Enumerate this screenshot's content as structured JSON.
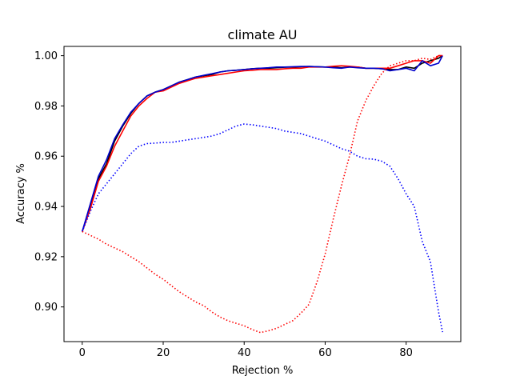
{
  "chart_data": {
    "type": "line",
    "title": "climate AU",
    "xlabel": "Rejection %",
    "ylabel": "Accuracy %",
    "xlim": [
      -4.5,
      93.5
    ],
    "ylim": [
      0.8862,
      1.0037
    ],
    "xticks": [
      0,
      20,
      40,
      60,
      80
    ],
    "yticks": [
      0.9,
      0.92,
      0.94,
      0.96,
      0.98,
      1.0
    ],
    "ytick_labels": [
      "0.90",
      "0.92",
      "0.94",
      "0.96",
      "0.98",
      "1.00"
    ],
    "grid": false,
    "legend": "none",
    "series": [
      {
        "color": "#000000",
        "style": "solid",
        "x": [
          0,
          2,
          4,
          6,
          8,
          10,
          12,
          14,
          16,
          18,
          20,
          22,
          24,
          26,
          28,
          30,
          32,
          34,
          36,
          38,
          40,
          42,
          44,
          46,
          48,
          50,
          52,
          54,
          56,
          58,
          60,
          62,
          64,
          66,
          68,
          70,
          72,
          74,
          76,
          78,
          80,
          82,
          84,
          86,
          88,
          89
        ],
        "y": [
          0.93,
          0.94,
          0.951,
          0.957,
          0.966,
          0.972,
          0.977,
          0.981,
          0.984,
          0.9855,
          0.9865,
          0.988,
          0.9895,
          0.9905,
          0.9915,
          0.992,
          0.9925,
          0.9935,
          0.994,
          0.9942,
          0.9945,
          0.9948,
          0.995,
          0.995,
          0.9952,
          0.9954,
          0.9955,
          0.9956,
          0.9957,
          0.9956,
          0.9955,
          0.9955,
          0.9952,
          0.9955,
          0.9955,
          0.995,
          0.995,
          0.9948,
          0.9945,
          0.9945,
          0.9955,
          0.995,
          0.997,
          0.998,
          0.999,
          1.0
        ]
      },
      {
        "color": "#ff0000",
        "style": "solid",
        "x": [
          0,
          2,
          4,
          6,
          8,
          10,
          12,
          14,
          16,
          18,
          20,
          22,
          24,
          26,
          28,
          30,
          32,
          34,
          36,
          38,
          40,
          42,
          44,
          46,
          48,
          50,
          52,
          54,
          56,
          58,
          60,
          62,
          64,
          66,
          68,
          70,
          72,
          74,
          76,
          78,
          80,
          82,
          84,
          86,
          88,
          89
        ],
        "y": [
          0.93,
          0.939,
          0.95,
          0.956,
          0.964,
          0.97,
          0.976,
          0.98,
          0.983,
          0.9855,
          0.986,
          0.9875,
          0.989,
          0.99,
          0.991,
          0.9915,
          0.992,
          0.9925,
          0.993,
          0.9935,
          0.994,
          0.9942,
          0.9945,
          0.9945,
          0.9945,
          0.9948,
          0.995,
          0.995,
          0.9955,
          0.9955,
          0.9955,
          0.9958,
          0.996,
          0.9958,
          0.9955,
          0.995,
          0.995,
          0.995,
          0.995,
          0.996,
          0.997,
          0.998,
          0.998,
          0.997,
          1.0,
          1.0
        ]
      },
      {
        "color": "#0000cc",
        "style": "solid",
        "x": [
          0,
          2,
          4,
          6,
          8,
          10,
          12,
          14,
          16,
          18,
          20,
          22,
          24,
          26,
          28,
          30,
          32,
          34,
          36,
          38,
          40,
          42,
          44,
          46,
          48,
          50,
          52,
          54,
          56,
          58,
          60,
          62,
          64,
          66,
          68,
          70,
          72,
          74,
          76,
          78,
          80,
          82,
          84,
          86,
          88,
          89
        ],
        "y": [
          0.93,
          0.941,
          0.952,
          0.9585,
          0.967,
          0.9725,
          0.9775,
          0.981,
          0.984,
          0.9855,
          0.9865,
          0.988,
          0.9895,
          0.9905,
          0.9915,
          0.9922,
          0.9928,
          0.9935,
          0.994,
          0.9942,
          0.9945,
          0.9948,
          0.995,
          0.9952,
          0.9955,
          0.9955,
          0.9956,
          0.9957,
          0.9957,
          0.9956,
          0.9955,
          0.9952,
          0.995,
          0.9955,
          0.9952,
          0.995,
          0.995,
          0.9948,
          0.994,
          0.9945,
          0.995,
          0.994,
          0.998,
          0.996,
          0.997,
          1.0
        ]
      },
      {
        "color": "#0000ff",
        "style": "dotted",
        "x": [
          0,
          2,
          4,
          6,
          8,
          10,
          12,
          14,
          16,
          18,
          20,
          22,
          24,
          26,
          28,
          30,
          32,
          34,
          36,
          38,
          40,
          42,
          44,
          46,
          48,
          50,
          52,
          54,
          56,
          58,
          60,
          62,
          64,
          66,
          68,
          70,
          72,
          74,
          76,
          78,
          80,
          82,
          84,
          86,
          88,
          89
        ],
        "y": [
          0.93,
          0.938,
          0.945,
          0.949,
          0.953,
          0.957,
          0.961,
          0.964,
          0.965,
          0.9652,
          0.9655,
          0.9655,
          0.966,
          0.9665,
          0.967,
          0.9675,
          0.968,
          0.969,
          0.9705,
          0.972,
          0.9728,
          0.9725,
          0.972,
          0.9715,
          0.971,
          0.97,
          0.9695,
          0.969,
          0.968,
          0.967,
          0.966,
          0.9645,
          0.963,
          0.962,
          0.96,
          0.959,
          0.9588,
          0.958,
          0.956,
          0.951,
          0.945,
          0.94,
          0.926,
          0.918,
          0.898,
          0.89
        ]
      },
      {
        "color": "#ff0000",
        "style": "dotted",
        "x": [
          0,
          2,
          4,
          6,
          8,
          10,
          12,
          14,
          16,
          18,
          20,
          22,
          24,
          26,
          28,
          30,
          32,
          34,
          36,
          38,
          40,
          42,
          44,
          46,
          48,
          50,
          52,
          54,
          56,
          58,
          60,
          62,
          64,
          66,
          68,
          70,
          72,
          74,
          76,
          78,
          80,
          82,
          84,
          86,
          88,
          89
        ],
        "y": [
          0.93,
          0.9285,
          0.927,
          0.925,
          0.9235,
          0.922,
          0.92,
          0.918,
          0.9155,
          0.913,
          0.911,
          0.9085,
          0.906,
          0.904,
          0.902,
          0.9005,
          0.898,
          0.896,
          0.8945,
          0.8935,
          0.8925,
          0.891,
          0.8898,
          0.8905,
          0.8915,
          0.893,
          0.8945,
          0.8975,
          0.901,
          0.91,
          0.921,
          0.935,
          0.948,
          0.96,
          0.974,
          0.982,
          0.988,
          0.993,
          0.996,
          0.997,
          0.998,
          0.998,
          0.999,
          0.9985,
          1.0,
          1.0
        ]
      }
    ]
  }
}
